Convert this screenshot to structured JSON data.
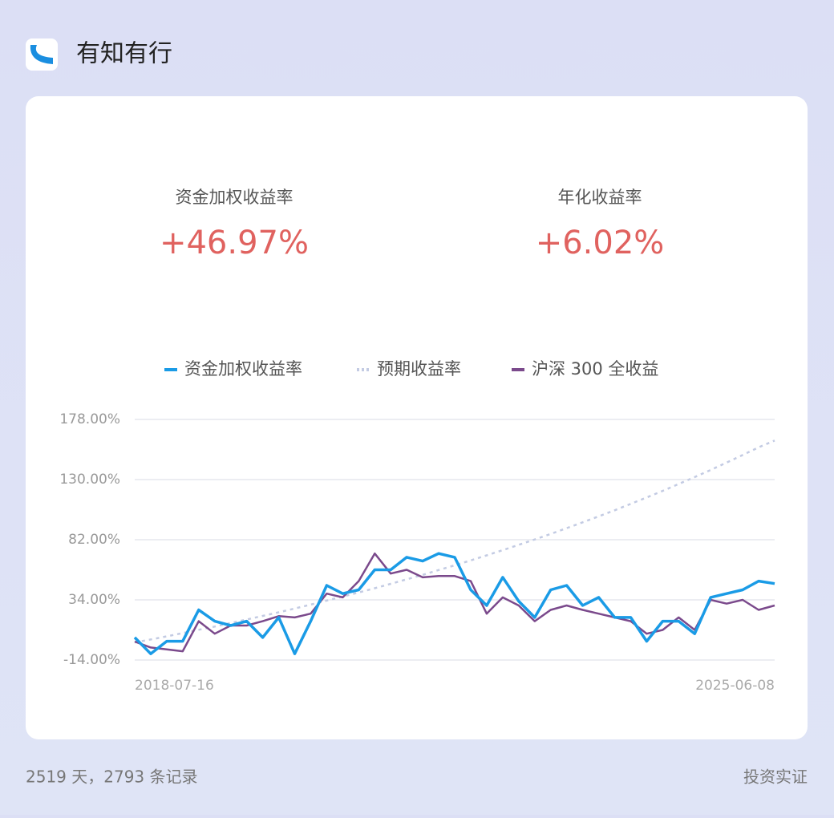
{
  "header": {
    "title": "有知有行"
  },
  "stats": [
    {
      "label": "资金加权收益率",
      "value": "+46.97%"
    },
    {
      "label": "年化收益率",
      "value": "+6.02%"
    }
  ],
  "footer": {
    "left": "2519 天，2793 条记录",
    "right": "投资实证"
  },
  "chart_data": {
    "type": "line",
    "categories": [
      "2018-07-16",
      null,
      null,
      null,
      null,
      null,
      null,
      null,
      null,
      null,
      null,
      null,
      null,
      null,
      null,
      null,
      null,
      null,
      null,
      null,
      null,
      null,
      null,
      null,
      null,
      null,
      null,
      null,
      null,
      null,
      null,
      null,
      null,
      null,
      null,
      null,
      null,
      null,
      null,
      null,
      "2025-06-08"
    ],
    "series": [
      {
        "name": "资金加权收益率",
        "color": "#1a9be6",
        "style": "solid",
        "values": [
          4,
          -9,
          1,
          1,
          26,
          17,
          13.5,
          17,
          4,
          20,
          -9,
          17,
          45.5,
          39,
          42,
          58,
          58,
          68,
          65,
          71,
          68,
          42,
          29.5,
          52,
          33,
          20,
          42,
          45.5,
          29.5,
          36,
          20,
          20,
          1,
          17,
          17,
          7,
          36,
          39,
          42,
          49,
          47
        ]
      },
      {
        "name": "预期收益率",
        "color": "#c3cbe3",
        "style": "dotted",
        "values": [
          0,
          2.4,
          4.9,
          7.5,
          10.1,
          12.7,
          15.5,
          18.3,
          21.2,
          24.1,
          27.1,
          30.2,
          33.4,
          36.6,
          39.9,
          43.3,
          46.8,
          50.4,
          54.0,
          57.8,
          61.6,
          65.5,
          69.5,
          73.7,
          77.9,
          82.2,
          86.6,
          91.2,
          95.9,
          100.6,
          105.5,
          110.6,
          115.7,
          121.0,
          126.5,
          132.0,
          137.7,
          143.6,
          149.6,
          155.7,
          161.2
        ]
      },
      {
        "name": "沪深 300 全收益",
        "color": "#7b4a8c",
        "style": "solid",
        "values": [
          0.7,
          -4,
          -5.5,
          -7,
          17,
          7,
          13.5,
          13.5,
          17,
          21,
          20,
          23,
          39,
          36,
          49,
          71,
          55,
          58,
          52,
          53,
          53,
          49,
          23,
          36,
          29.5,
          17,
          26,
          29.5,
          26,
          23,
          20,
          17,
          7,
          10,
          20,
          10,
          34,
          31,
          34,
          26,
          29.5
        ]
      }
    ],
    "ylim": [
      -14,
      178
    ],
    "yticks": [
      {
        "value": -14,
        "label": "-14.00%"
      },
      {
        "value": 34,
        "label": "34.00%"
      },
      {
        "value": 82,
        "label": "82.00%"
      },
      {
        "value": 130,
        "label": "130.00%"
      },
      {
        "value": 178,
        "label": "178.00%"
      }
    ],
    "grid": true,
    "legend": "top"
  }
}
